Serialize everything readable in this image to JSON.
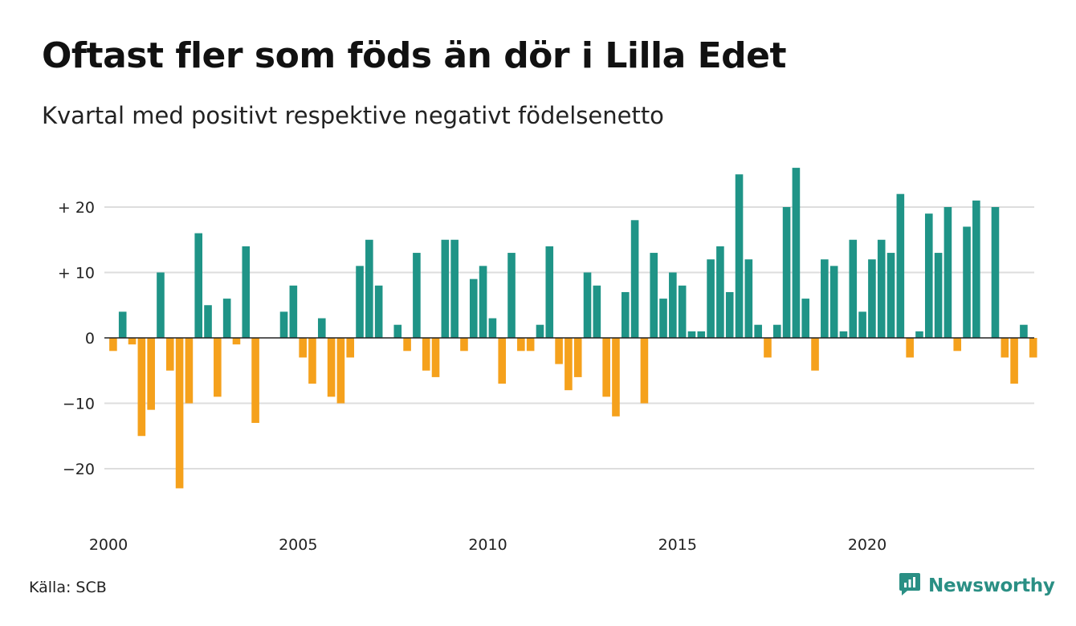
{
  "title": "Oftast fler som föds än dör i Lilla Edet",
  "subtitle": "Kvartal med positivt respektive negativt födelsenetto",
  "source": "Källa: SCB",
  "brand": {
    "name": "Newsworthy",
    "icon": "newsworthy-logo-icon",
    "color": "#2a8f84"
  },
  "chart_data": {
    "type": "bar",
    "title": "Oftast fler som föds än dör i Lilla Edet",
    "subtitle": "Kvartal med positivt respektive negativt födelsenetto",
    "colors": {
      "positive": "#1f9487",
      "negative": "#f5a11c",
      "grid": "#dddddd",
      "zero_line": "#222222"
    },
    "grid": true,
    "ylim": [
      -25,
      27
    ],
    "y_ticks": [
      20,
      10,
      0,
      -10,
      -20
    ],
    "y_tick_labels": [
      "+ 20",
      "+ 10",
      "0",
      "−10",
      "−20"
    ],
    "x_ticks": [
      2000,
      2005,
      2010,
      2015,
      2020
    ],
    "x_tick_labels": [
      "2000",
      "2005",
      "2010",
      "2015",
      "2020"
    ],
    "series": [
      {
        "start": "2000 Q1",
        "frequency": "quarter",
        "values": [
          -2,
          4,
          -1,
          -15,
          -11,
          10,
          -5,
          -23,
          -10,
          16,
          5,
          -9,
          6,
          -1,
          14,
          -13,
          0,
          0,
          4,
          8,
          -3,
          -7,
          3,
          -9,
          -10,
          -3,
          11,
          15,
          8,
          0,
          2,
          -2,
          13,
          -5,
          -6,
          15,
          15,
          -2,
          9,
          11,
          3,
          -7,
          13,
          -2,
          -2,
          2,
          14,
          -4,
          -8,
          -6,
          10,
          8,
          -9,
          -12,
          7,
          18,
          -10,
          13,
          6,
          10,
          8,
          1,
          1,
          12,
          14,
          7,
          25,
          12,
          2,
          -3,
          2,
          20,
          26,
          6,
          -5,
          12,
          11,
          1,
          15,
          4,
          12,
          15,
          13,
          22,
          -3,
          1,
          19,
          13,
          20,
          -2,
          17,
          21,
          0,
          20,
          -3,
          -7,
          2,
          -3
        ]
      }
    ]
  }
}
